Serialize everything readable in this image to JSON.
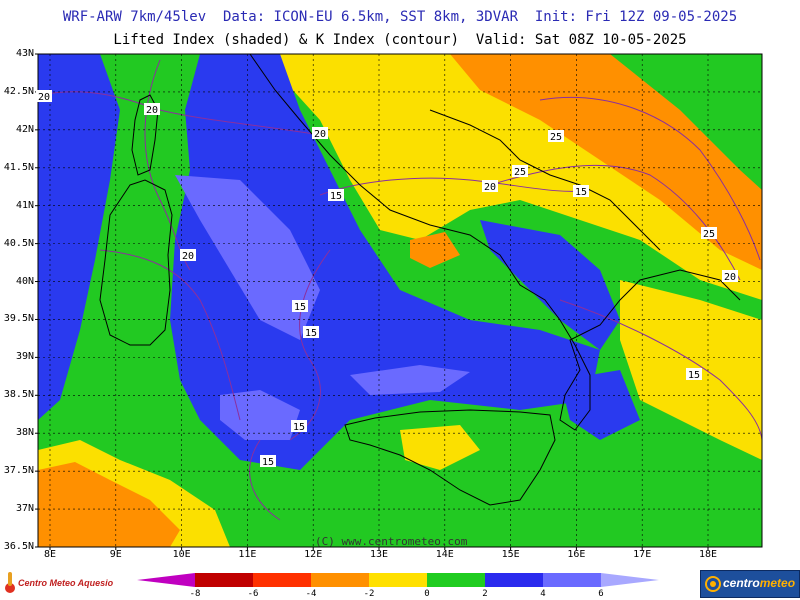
{
  "header": {
    "line1": "WRF-ARW 7km/45lev  Data: ICON-EU 6.5km, SST 8km, 3DVAR  Init: Fri 12Z 09-05-2025",
    "line2": "Lifted Index (shaded) & K Index (contour)  Valid: Sat 08Z 10-05-2025"
  },
  "axes": {
    "lat_labels": [
      "43N",
      "42.5N",
      "42N",
      "41.5N",
      "41N",
      "40.5N",
      "40N",
      "39.5N",
      "39N",
      "38.5N",
      "38N",
      "37.5N",
      "37N",
      "36.5N"
    ],
    "lon_labels": [
      "8E",
      "9E",
      "10E",
      "11E",
      "12E",
      "13E",
      "14E",
      "15E",
      "16E",
      "17E",
      "18E"
    ]
  },
  "contour_labels": [
    {
      "text": "20"
    },
    {
      "text": "20"
    },
    {
      "text": "20"
    },
    {
      "text": "20"
    },
    {
      "text": "20"
    },
    {
      "text": "20"
    },
    {
      "text": "25"
    },
    {
      "text": "25"
    },
    {
      "text": "25"
    },
    {
      "text": "15"
    },
    {
      "text": "15"
    },
    {
      "text": "15"
    },
    {
      "text": "15"
    },
    {
      "text": "15"
    },
    {
      "text": "15"
    },
    {
      "text": "15"
    }
  ],
  "credit": "(C) www.centrometeo.com",
  "logos": {
    "left": "Centro Meteo Aquesio",
    "right_a": "centro",
    "right_b": "meteo"
  },
  "colorbar": {
    "labels": [
      "-8",
      "-6",
      "-4",
      "-2",
      "0",
      "2",
      "4",
      "6"
    ],
    "colors": [
      "#c000c0",
      "#c00000",
      "#ff3000",
      "#ff9000",
      "#ffe000",
      "#20cc20",
      "#2a2aee",
      "#6a6aff",
      "#a8a8ff"
    ]
  },
  "colors": {
    "sea_blue": "#2a3aef",
    "light_blue": "#6a6aff",
    "green": "#22c922",
    "yellow": "#fbe000",
    "orange": "#ff9000",
    "red_orange": "#ff4500",
    "contour": "#8b2f9e"
  }
}
